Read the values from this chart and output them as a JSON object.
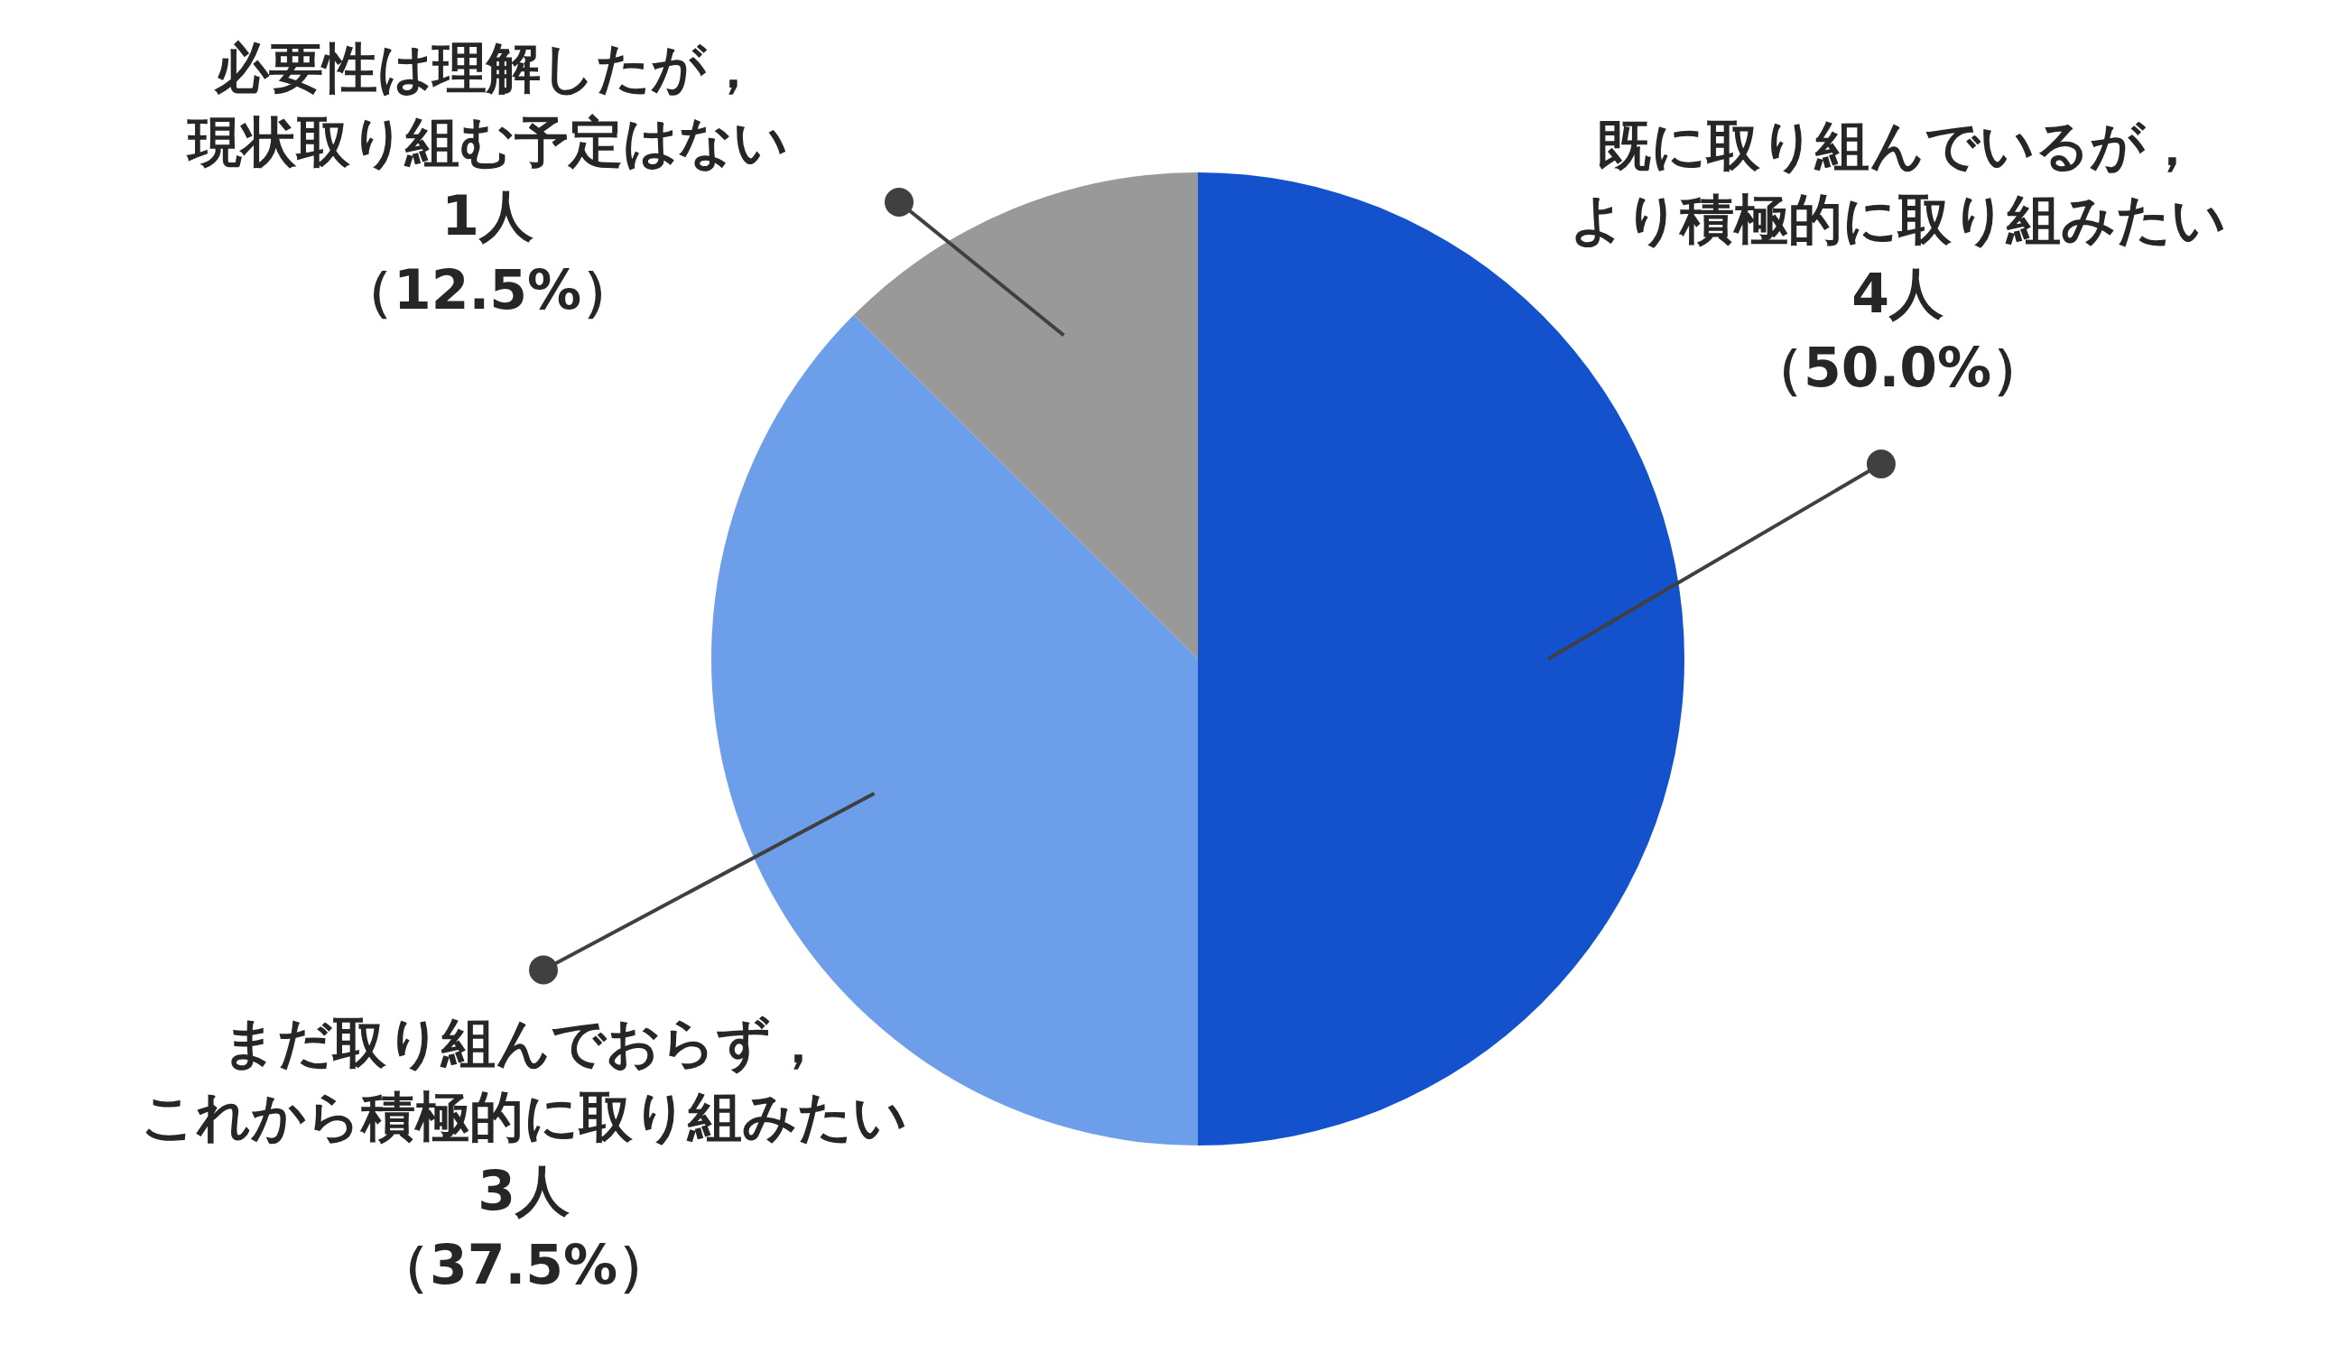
{
  "chart_data": {
    "type": "pie",
    "categories": [
      "既に取り組んでいるが，より積極的に取り組みたい",
      "まだ取り組んでおらず，これから積極的に取り組みたい",
      "必要性は理解したが，現状取り組む予定はない"
    ],
    "values": [
      4,
      3,
      1
    ],
    "colors": [
      "#1352cc",
      "#6d9eea",
      "#999999"
    ],
    "value_labels": [
      "4人（50.0%）",
      "3人（37.5%）",
      "1人（12.5%）"
    ],
    "legend": false
  }
}
